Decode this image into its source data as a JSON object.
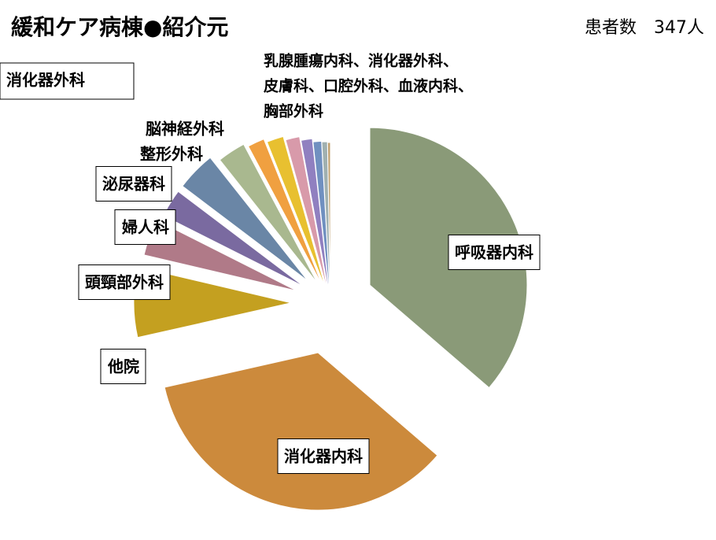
{
  "chart_data": {
    "type": "pie",
    "title": "緩和ケア病棟●紹介元",
    "subtitle": "患者数　347人",
    "categories": [
      "呼吸器内科",
      "消化器内科",
      "他院",
      "頭頸部外科",
      "婦人科",
      "泌尿器科",
      "脳神経外科",
      "整形外科",
      null,
      null,
      null,
      null,
      null,
      null
    ],
    "values": [
      126,
      122,
      25,
      13,
      10,
      14,
      10,
      6,
      6,
      5,
      4,
      3,
      2,
      1
    ],
    "colors": [
      "#8a9a78",
      "#cc8a3c",
      "#c4a020",
      "#b07a88",
      "#7a6aa0",
      "#6a86a6",
      "#a9b88f",
      "#f0a040",
      "#e8c030",
      "#d89aaa",
      "#9080c0",
      "#7090c0",
      "#a0b0b0",
      "#c0a070"
    ],
    "group_label": [
      "乳腺腫瘍内科、消化器外科、",
      "皮膚科、口腔外科、血液内科、",
      "胸部外科"
    ],
    "extra_label": "消化器外科"
  }
}
